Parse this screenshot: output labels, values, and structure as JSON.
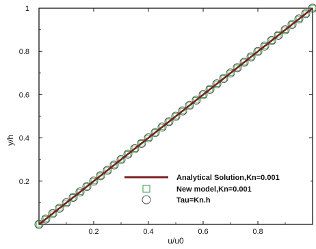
{
  "chart_data": {
    "type": "line",
    "xlabel": "u/u0",
    "ylabel": "y/h",
    "xlim": [
      0,
      1
    ],
    "ylim": [
      0,
      1
    ],
    "x_ticks": [
      "0.2",
      "0.4",
      "0.6",
      "0.8"
    ],
    "y_ticks": [
      "0.2",
      "0.4",
      "0.6",
      "0.8",
      "1"
    ],
    "grid": false,
    "legend_position": "bottom-right",
    "series": [
      {
        "name": "Analytical Solution,Kn=0.001",
        "style": "line",
        "color": "#7a1e1e",
        "x": [
          0,
          1
        ],
        "y": [
          0,
          1
        ]
      },
      {
        "name": "New model,Kn=0.001",
        "style": "square-markers",
        "color": "#2e9e3e",
        "x": [
          0,
          0.025,
          0.05,
          0.075,
          0.1,
          0.125,
          0.15,
          0.175,
          0.2,
          0.225,
          0.25,
          0.275,
          0.3,
          0.325,
          0.35,
          0.375,
          0.4,
          0.425,
          0.45,
          0.475,
          0.5,
          0.525,
          0.55,
          0.575,
          0.6,
          0.625,
          0.65,
          0.675,
          0.7,
          0.725,
          0.75,
          0.775,
          0.8,
          0.825,
          0.85,
          0.875,
          0.9,
          0.925,
          0.95,
          0.975,
          1
        ],
        "y": [
          0,
          0.025,
          0.05,
          0.075,
          0.1,
          0.125,
          0.15,
          0.175,
          0.2,
          0.225,
          0.25,
          0.275,
          0.3,
          0.325,
          0.35,
          0.375,
          0.4,
          0.425,
          0.45,
          0.475,
          0.5,
          0.525,
          0.55,
          0.575,
          0.6,
          0.625,
          0.65,
          0.675,
          0.7,
          0.725,
          0.75,
          0.775,
          0.8,
          0.825,
          0.85,
          0.875,
          0.9,
          0.925,
          0.95,
          0.975,
          1
        ]
      },
      {
        "name": "Tau=Kn.h",
        "style": "circle-markers",
        "color": "#555555",
        "x": [
          0,
          0.025,
          0.05,
          0.075,
          0.1,
          0.125,
          0.15,
          0.175,
          0.2,
          0.225,
          0.25,
          0.275,
          0.3,
          0.325,
          0.35,
          0.375,
          0.4,
          0.425,
          0.45,
          0.475,
          0.5,
          0.525,
          0.55,
          0.575,
          0.6,
          0.625,
          0.65,
          0.675,
          0.7,
          0.725,
          0.75,
          0.775,
          0.8,
          0.825,
          0.85,
          0.875,
          0.9,
          0.925,
          0.95,
          0.975,
          1
        ],
        "y": [
          0,
          0.025,
          0.05,
          0.075,
          0.1,
          0.125,
          0.15,
          0.175,
          0.2,
          0.225,
          0.25,
          0.275,
          0.3,
          0.325,
          0.35,
          0.375,
          0.4,
          0.425,
          0.45,
          0.475,
          0.5,
          0.525,
          0.55,
          0.575,
          0.6,
          0.625,
          0.65,
          0.675,
          0.7,
          0.725,
          0.75,
          0.775,
          0.8,
          0.825,
          0.85,
          0.875,
          0.9,
          0.925,
          0.95,
          0.975,
          1
        ]
      }
    ]
  }
}
